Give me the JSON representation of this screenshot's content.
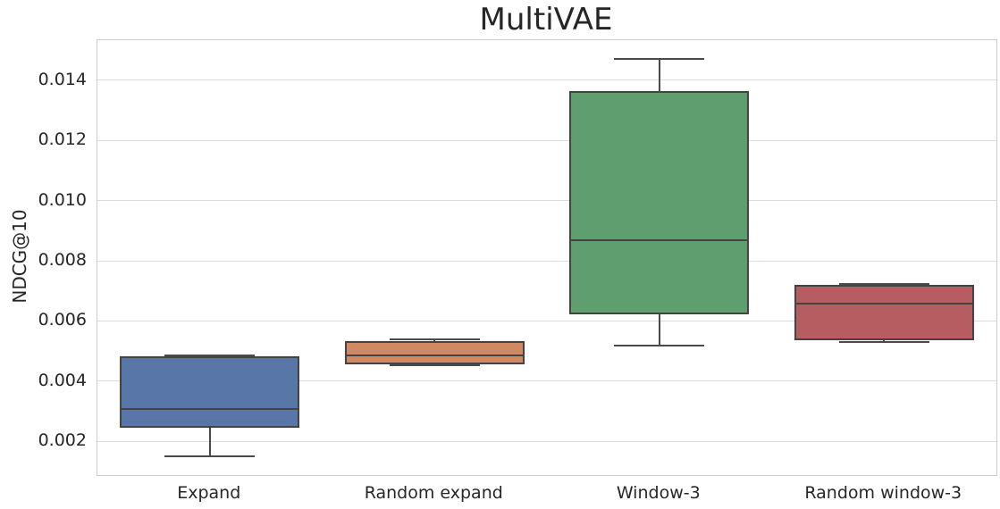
{
  "chart_data": {
    "type": "box",
    "title": "MultiVAE",
    "xlabel": "",
    "ylabel": "NDCG@10",
    "grid": true,
    "legend": false,
    "ylim": [
      0.00088,
      0.01533
    ],
    "yticks": [
      {
        "value": 0.002,
        "label": "0.002"
      },
      {
        "value": 0.004,
        "label": "0.004"
      },
      {
        "value": 0.006,
        "label": "0.006"
      },
      {
        "value": 0.008,
        "label": "0.008"
      },
      {
        "value": 0.01,
        "label": "0.010"
      },
      {
        "value": 0.012,
        "label": "0.012"
      },
      {
        "value": 0.014,
        "label": "0.014"
      }
    ],
    "categories": [
      "Expand",
      "Random expand",
      "Window-3",
      "Random window-3"
    ],
    "boxes": [
      {
        "category": "Expand",
        "whisker_low": 0.0015,
        "q1": 0.00245,
        "median": 0.00308,
        "q3": 0.00482,
        "whisker_high": 0.00487,
        "fill_color": "#5876a7"
      },
      {
        "category": "Random expand",
        "whisker_low": 0.00453,
        "q1": 0.00457,
        "median": 0.00487,
        "q3": 0.00534,
        "whisker_high": 0.00538,
        "fill_color": "#cf8a63"
      },
      {
        "category": "Window-3",
        "whisker_low": 0.00519,
        "q1": 0.00623,
        "median": 0.00867,
        "q3": 0.01365,
        "whisker_high": 0.0147,
        "fill_color": "#5f9e6e"
      },
      {
        "category": "Random window-3",
        "whisker_low": 0.00531,
        "q1": 0.00536,
        "median": 0.00658,
        "q3": 0.0072,
        "whisker_high": 0.00724,
        "fill_color": "#b55d60"
      }
    ],
    "colors": {
      "box_edge": "#434343",
      "whisker": "#4a4a4a",
      "gridline": "#dcdcdc",
      "spine": "#cccccc",
      "text": "#262626",
      "background": "#ffffff"
    }
  }
}
